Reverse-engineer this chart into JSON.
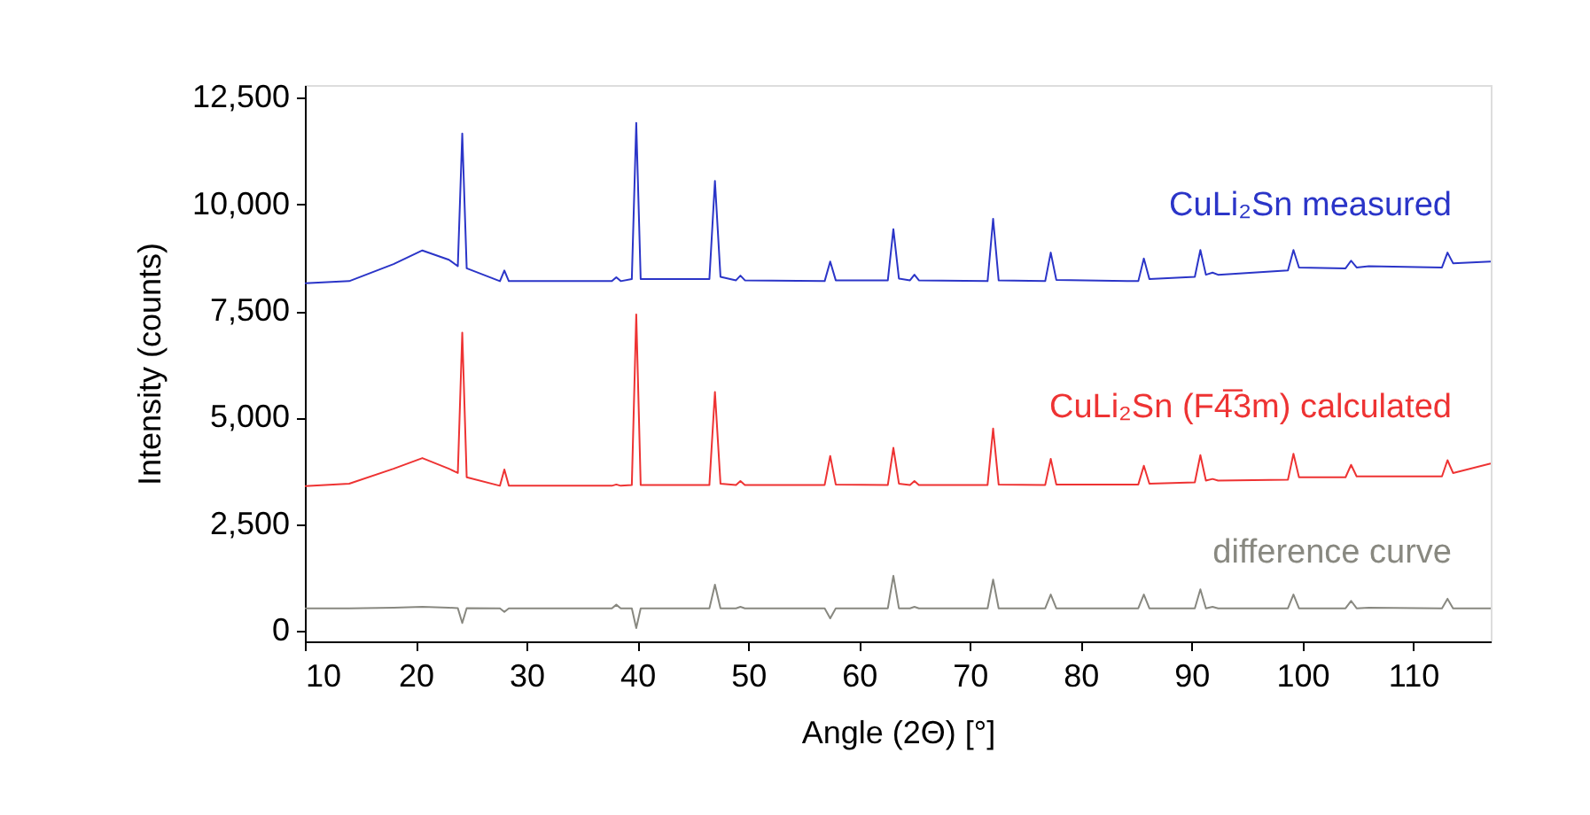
{
  "chart_data": {
    "type": "line",
    "xlabel": "Angle (2Θ) [°]",
    "ylabel": "Intensity (counts)",
    "x": [
      10,
      14,
      18,
      20.6,
      23,
      23.8,
      24.2,
      24.6,
      27.6,
      28.0,
      28.4,
      37.7,
      38.1,
      38.5,
      39.5,
      39.9,
      40.3,
      46.5,
      47.0,
      47.5,
      48.9,
      49.3,
      49.7,
      56.9,
      57.4,
      57.9,
      62.6,
      63.1,
      63.6,
      64.6,
      65.0,
      65.4,
      71.6,
      72.1,
      72.6,
      76.8,
      77.3,
      77.8,
      85.2,
      85.7,
      86.2,
      90.3,
      90.8,
      91.3,
      91.9,
      92.4,
      98.7,
      99.2,
      99.7,
      103.9,
      104.4,
      104.9,
      106.0,
      112.6,
      113.1,
      113.6,
      117
    ],
    "series": [
      {
        "name": "CuLi₂Sn measured",
        "color": "#2b35c8",
        "values": [
          8150,
          8200,
          8600,
          8920,
          8700,
          8550,
          11660,
          8500,
          8200,
          8450,
          8200,
          8200,
          8290,
          8200,
          8250,
          11910,
          8250,
          8250,
          10550,
          8300,
          8220,
          8330,
          8220,
          8200,
          8660,
          8220,
          8220,
          9420,
          8260,
          8220,
          8350,
          8220,
          8200,
          9660,
          8220,
          8200,
          8870,
          8230,
          8200,
          8730,
          8250,
          8300,
          8930,
          8350,
          8400,
          8350,
          8450,
          8930,
          8520,
          8500,
          8680,
          8520,
          8550,
          8520,
          8870,
          8620,
          8660
        ]
      },
      {
        "name": "CuLi₂Sn (F4̅3m) calculated",
        "color": "#ee3333",
        "values": [
          3390,
          3450,
          3800,
          4050,
          3800,
          3700,
          6990,
          3600,
          3400,
          3780,
          3400,
          3400,
          3430,
          3400,
          3420,
          7420,
          3420,
          3420,
          5600,
          3450,
          3420,
          3510,
          3420,
          3420,
          4100,
          3430,
          3420,
          4290,
          3450,
          3420,
          3510,
          3420,
          3420,
          4740,
          3430,
          3420,
          4030,
          3430,
          3430,
          3870,
          3450,
          3480,
          4120,
          3520,
          3560,
          3520,
          3540,
          4150,
          3600,
          3600,
          3890,
          3620,
          3620,
          3620,
          4000,
          3700,
          3920
        ]
      },
      {
        "name": "difference curve",
        "color": "#888880",
        "values": [
          525,
          525,
          540,
          560,
          540,
          530,
          180,
          530,
          525,
          440,
          525,
          525,
          610,
          525,
          525,
          60,
          525,
          525,
          1080,
          525,
          525,
          560,
          525,
          525,
          290,
          525,
          525,
          1290,
          525,
          525,
          560,
          525,
          525,
          1200,
          525,
          525,
          850,
          525,
          525,
          850,
          525,
          525,
          970,
          525,
          560,
          525,
          525,
          850,
          525,
          525,
          700,
          525,
          540,
          525,
          750,
          525,
          525
        ]
      }
    ],
    "xlim": [
      10,
      117
    ],
    "xticks": [
      10,
      20,
      30,
      40,
      50,
      60,
      70,
      80,
      90,
      100,
      110
    ],
    "ylim": [
      -250,
      12800
    ],
    "yticks": [
      0,
      {
        "value": 2500,
        "label": "2,500"
      },
      {
        "value": 5000,
        "label": "5,000"
      },
      {
        "value": 7500,
        "label": "7,500"
      },
      {
        "value": 10000,
        "label": "10,000"
      },
      {
        "value": 12500,
        "label": "12,500"
      }
    ]
  }
}
